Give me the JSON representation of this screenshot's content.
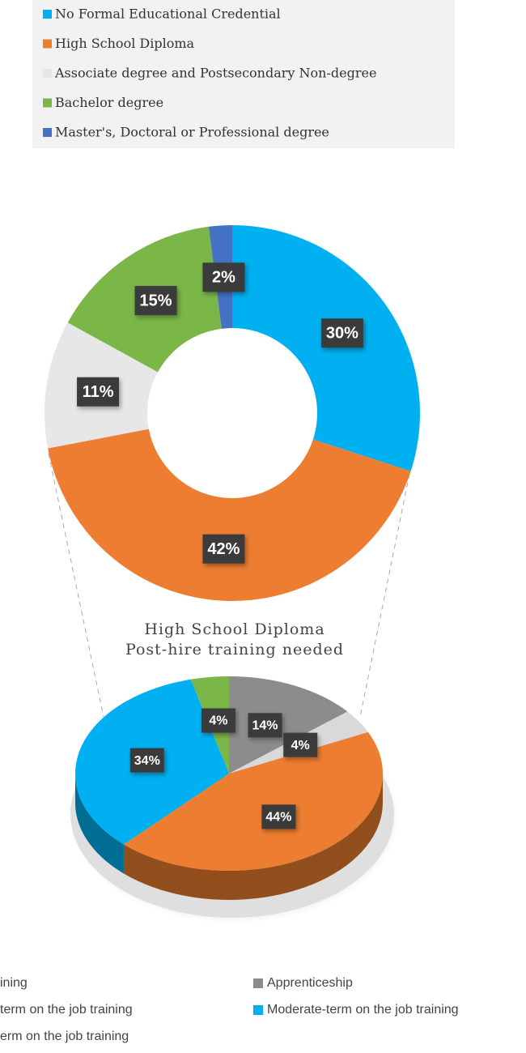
{
  "chart_data": [
    {
      "type": "donut",
      "categories": [
        "No Formal Educational Credential",
        "High School Diploma",
        "Associate degree and Postsecondary Non-degree",
        "Bachelor degree",
        "Master's, Doctoral or Professional degree"
      ],
      "values": [
        30,
        42,
        11,
        15,
        2
      ],
      "value_labels": [
        "30%",
        "42%",
        "11%",
        "15%",
        "2%"
      ],
      "colors": [
        "#00b0f0",
        "#ed7d31",
        "#e7e7e7",
        "#7ab648",
        "#4472c4"
      ],
      "legend": "top"
    },
    {
      "type": "pie",
      "title": "High School Diploma",
      "subtitle": "Post-hire training needed",
      "categories": [
        "Apprenticeship",
        "ining",
        "term on the job training",
        "Moderate-term on the job training",
        "erm on the job training"
      ],
      "values": [
        14,
        4,
        44,
        34,
        4
      ],
      "value_labels": [
        "14%",
        "4%",
        "44%",
        "34%",
        "4%"
      ],
      "colors": [
        "#8c8c8c",
        "#d9d9d9",
        "#ed7d31",
        "#00b0f0",
        "#7ab648"
      ],
      "legend": "bottom"
    }
  ]
}
